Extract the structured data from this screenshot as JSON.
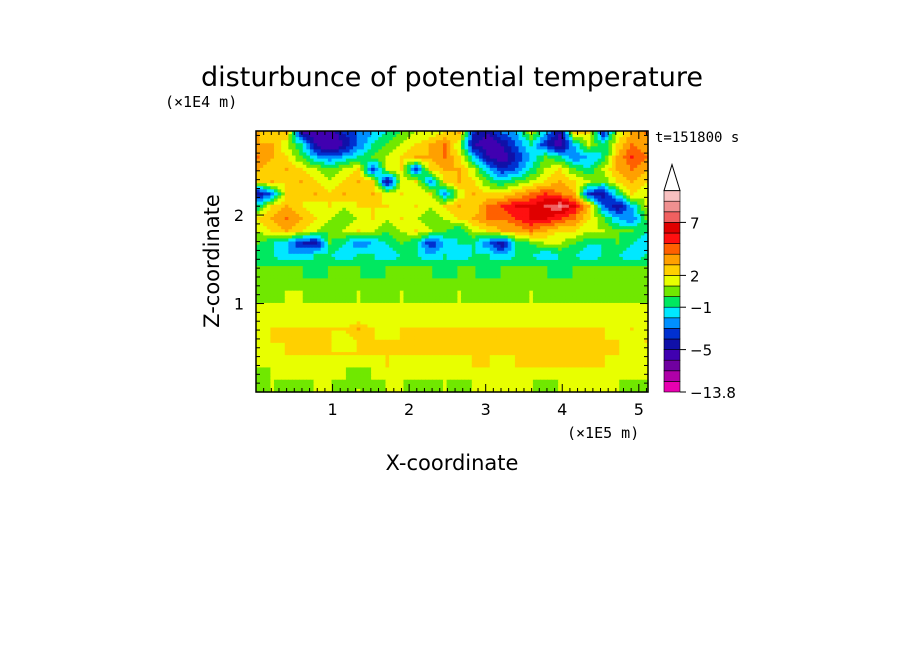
{
  "chart_data": {
    "type": "heatmap",
    "title": "disturbunce of potential temperature",
    "xlabel": "X-coordinate",
    "ylabel": "Z-coordinate",
    "x_unit": "(×1E5 m)",
    "y_unit": "(×1E4 m)",
    "time_label": "t=151800 s",
    "xlim": [
      0,
      5.12
    ],
    "ylim": [
      0,
      2.95
    ],
    "x_ticks": [
      "1",
      "2",
      "3",
      "4",
      "5"
    ],
    "x_tick_values": [
      1,
      2,
      3,
      4,
      5
    ],
    "y_ticks": [
      "1",
      "2"
    ],
    "y_tick_values": [
      1,
      2
    ],
    "colorbar_labels": [
      "7",
      "2",
      "−1",
      "−5",
      "−13.8"
    ],
    "colorbar_levels": [
      -13.8,
      -11,
      -9,
      -7,
      -5,
      -4,
      -3,
      -2,
      -1,
      0,
      1,
      2,
      3,
      4,
      5,
      6,
      7,
      8,
      9,
      10
    ],
    "colorbar_colors": [
      "#e800b0",
      "#b000a8",
      "#7000a0",
      "#4000b0",
      "#1010a8",
      "#0030d0",
      "#0090ff",
      "#00e8ff",
      "#00e860",
      "#70e800",
      "#e8ff00",
      "#ffd000",
      "#ffa000",
      "#ff6000",
      "#ff1010",
      "#e00000",
      "#f06060",
      "#f09090",
      "#f8c0c0"
    ],
    "colorbar_extend": "max",
    "field_rows": [
      [
        3,
        2,
        3,
        -5,
        -6,
        -6,
        -4,
        -3,
        -2,
        -1,
        0,
        1,
        1,
        2,
        3,
        -4,
        -5,
        -3,
        -2,
        1,
        -2,
        -5,
        2,
        2,
        -4,
        1,
        3,
        4
      ],
      [
        3,
        3,
        1,
        -1,
        -5,
        -7,
        -5,
        -3,
        -1,
        0,
        1,
        2,
        3,
        4,
        1,
        -5,
        -6,
        -5,
        -3,
        -1,
        -4,
        -6,
        -2,
        1,
        -1,
        2,
        4,
        3
      ],
      [
        4,
        3,
        2,
        0,
        -2,
        -3,
        -2,
        -1,
        0,
        1,
        2,
        3,
        3,
        4,
        2,
        -2,
        -5,
        -6,
        -4,
        -2,
        0,
        -1,
        -3,
        -2,
        -1,
        3,
        5,
        4
      ],
      [
        3,
        2,
        3,
        2,
        1,
        0,
        1,
        2,
        -4,
        1,
        2,
        -4,
        2,
        3,
        3,
        1,
        -2,
        -4,
        -3,
        -1,
        1,
        2,
        0,
        -1,
        1,
        3,
        4,
        3
      ],
      [
        2,
        3,
        2,
        3,
        2,
        1,
        2,
        3,
        2,
        -5,
        1,
        2,
        -3,
        2,
        3,
        2,
        0,
        -1,
        0,
        1,
        2,
        3,
        2,
        1,
        0,
        2,
        3,
        2
      ],
      [
        -5,
        -3,
        2,
        2,
        3,
        2,
        3,
        2,
        3,
        1,
        2,
        1,
        2,
        -3,
        1,
        3,
        2,
        2,
        3,
        4,
        5,
        4,
        3,
        -4,
        -5,
        -1,
        2,
        1
      ],
      [
        -1,
        2,
        3,
        2,
        1,
        2,
        1,
        2,
        2,
        2,
        1,
        2,
        1,
        2,
        3,
        2,
        4,
        5,
        6,
        6,
        7,
        8,
        6,
        3,
        -3,
        -5,
        -2,
        1
      ],
      [
        2,
        3,
        4,
        3,
        2,
        1,
        0,
        1,
        2,
        1,
        2,
        1,
        0,
        1,
        2,
        3,
        4,
        4,
        5,
        6,
        6,
        5,
        4,
        2,
        0,
        -2,
        -3,
        0
      ],
      [
        1,
        2,
        3,
        2,
        1,
        0,
        1,
        2,
        1,
        0,
        1,
        2,
        1,
        0,
        -1,
        1,
        2,
        3,
        3,
        4,
        3,
        2,
        2,
        1,
        1,
        0,
        0,
        -1
      ],
      [
        0,
        -1,
        -2,
        -4,
        -5,
        0,
        -1,
        -3,
        -2,
        -1,
        0,
        -1,
        -4,
        -2,
        -1,
        -1,
        -3,
        -5,
        -1,
        0,
        1,
        1,
        0,
        -1,
        -1,
        0,
        -1,
        -2
      ],
      [
        -1,
        -1,
        -2,
        -2,
        -1,
        -1,
        -2,
        -1,
        -1,
        -2,
        -1,
        -1,
        -2,
        -1,
        -2,
        -1,
        -1,
        -2,
        -1,
        -1,
        -2,
        -1,
        -1,
        -2,
        -1,
        -1,
        -2,
        -1
      ],
      [
        0,
        0,
        0,
        0,
        -1,
        0,
        0,
        0,
        -1,
        0,
        0,
        0,
        0,
        -1,
        0,
        0,
        -1,
        0,
        0,
        0,
        0,
        -1,
        0,
        0,
        0,
        0,
        0,
        0
      ],
      [
        0,
        0,
        0,
        0,
        0,
        0,
        0,
        0,
        0,
        0,
        0,
        0,
        0,
        0,
        0,
        0,
        0,
        0,
        0,
        0,
        0,
        0,
        0,
        0,
        0,
        0,
        0,
        0
      ],
      [
        0,
        0,
        1,
        1,
        0,
        0,
        0,
        1,
        0,
        0,
        1,
        0,
        0,
        0,
        1,
        0,
        0,
        0,
        0,
        1,
        0,
        0,
        0,
        0,
        0,
        0,
        0,
        0
      ],
      [
        1,
        1,
        1,
        1,
        1,
        1,
        1,
        1,
        1,
        1,
        1,
        1,
        1,
        1,
        1,
        1,
        1,
        1,
        1,
        1,
        1,
        1,
        1,
        1,
        1,
        1,
        1,
        1
      ],
      [
        1,
        1,
        1,
        1,
        1,
        1,
        1,
        1,
        1,
        1,
        1,
        1,
        1,
        1,
        1,
        1,
        1,
        1,
        1,
        1,
        1,
        1,
        1,
        1,
        1,
        1,
        1,
        1
      ],
      [
        1,
        2,
        2,
        2,
        2,
        2,
        2,
        3,
        2,
        1,
        2,
        2,
        2,
        2,
        2,
        2,
        2,
        2,
        2,
        2,
        2,
        2,
        2,
        2,
        2,
        1,
        2,
        1
      ],
      [
        1,
        2,
        2,
        2,
        2,
        2,
        1,
        2,
        2,
        2,
        2,
        2,
        2,
        2,
        2,
        2,
        2,
        2,
        2,
        2,
        2,
        2,
        2,
        2,
        2,
        2,
        1,
        2
      ],
      [
        1,
        1,
        2,
        2,
        2,
        2,
        2,
        2,
        2,
        2,
        2,
        2,
        2,
        2,
        2,
        2,
        2,
        2,
        2,
        2,
        2,
        2,
        2,
        2,
        2,
        2,
        1,
        1
      ],
      [
        1,
        1,
        1,
        1,
        1,
        1,
        1,
        1,
        1,
        2,
        1,
        1,
        1,
        1,
        1,
        2,
        2,
        1,
        2,
        2,
        2,
        2,
        2,
        2,
        2,
        1,
        1,
        1
      ],
      [
        0,
        1,
        1,
        1,
        1,
        1,
        1,
        0,
        1,
        1,
        1,
        1,
        1,
        1,
        1,
        1,
        1,
        1,
        1,
        1,
        1,
        1,
        1,
        1,
        1,
        1,
        1,
        1
      ],
      [
        0,
        1,
        0,
        0,
        1,
        1,
        0,
        1,
        0,
        1,
        1,
        0,
        0,
        1,
        0,
        1,
        1,
        1,
        1,
        1,
        0,
        1,
        1,
        1,
        1,
        1,
        0,
        0
      ]
    ]
  }
}
